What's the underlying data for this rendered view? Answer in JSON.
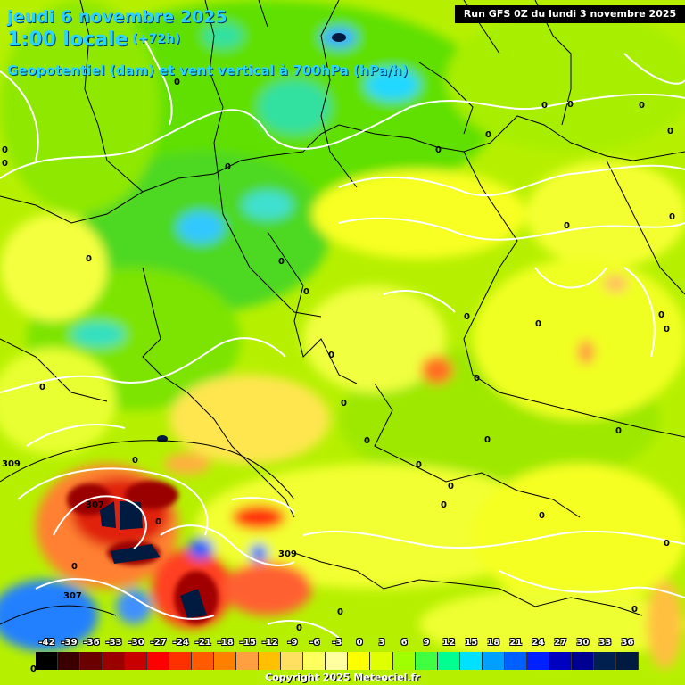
{
  "header": {
    "date": "jeudi 6 novembre 2025",
    "time": "1:00 locale",
    "offset": "(+72h)",
    "parameter": "Geopotentiel (dam) et vent vertical à 700hPa (hPa/h)",
    "run": "Run GFS 0Z du lundi 3 novembre 2025"
  },
  "legend": {
    "ticks": [
      "-42",
      "-39",
      "-36",
      "-33",
      "-30",
      "-27",
      "-24",
      "-21",
      "-18",
      "-15",
      "-12",
      "-9",
      "-6",
      "-3",
      "0",
      "3",
      "6",
      "9",
      "12",
      "15",
      "18",
      "21",
      "24",
      "27",
      "30",
      "33",
      "36"
    ],
    "colors": [
      "#000000",
      "#3a0000",
      "#6a0000",
      "#9a0000",
      "#c80000",
      "#ff0000",
      "#ff3000",
      "#ff5a00",
      "#ff8000",
      "#ffa040",
      "#ffc000",
      "#ffe060",
      "#ffff60",
      "#ffffa0",
      "#ffff00",
      "#e0ff00",
      "#a0ff00",
      "#40ff40",
      "#00ff90",
      "#00e0ff",
      "#00a0ff",
      "#0060ff",
      "#0020ff",
      "#0000c0",
      "#000090",
      "#002050",
      "#001a40"
    ]
  },
  "contour_labels": [
    "0",
    "309",
    "307"
  ],
  "copyright": "Copyright 2025 Meteociel.fr"
}
